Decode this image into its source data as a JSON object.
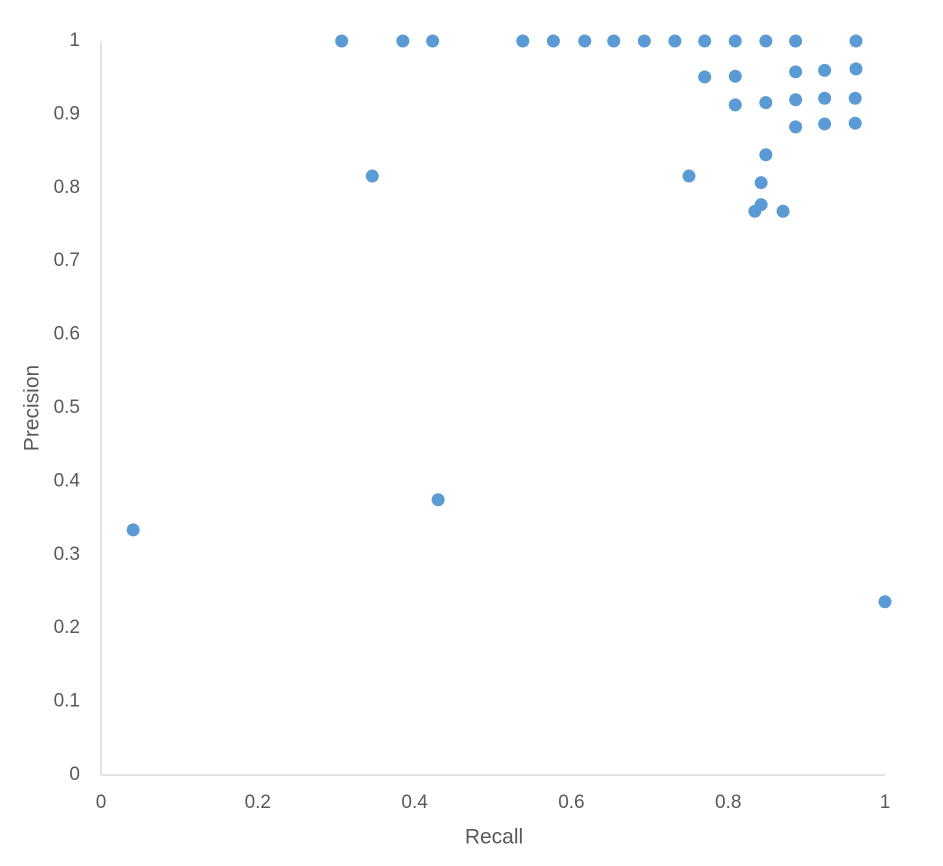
{
  "chart_data": {
    "type": "scatter",
    "x_label": "Recall",
    "y_label": "Precision",
    "x": [
      0.307,
      0.385,
      0.423,
      0.538,
      0.577,
      0.617,
      0.654,
      0.693,
      0.732,
      0.77,
      0.809,
      0.848,
      0.886,
      0.963,
      0.77,
      0.809,
      0.886,
      0.923,
      0.963,
      0.809,
      0.848,
      0.886,
      0.923,
      0.962,
      0.886,
      0.923,
      0.962,
      0.848,
      0.75,
      0.346,
      0.842,
      0.842,
      0.834,
      0.87,
      0.041,
      0.43,
      1.0
    ],
    "values": [
      1,
      1,
      1,
      1,
      1,
      1,
      1,
      1,
      1,
      1,
      1,
      1,
      1,
      1,
      0.951,
      0.952,
      0.958,
      0.96,
      0.962,
      0.913,
      0.916,
      0.92,
      0.922,
      0.922,
      0.883,
      0.887,
      0.888,
      0.845,
      0.816,
      0.816,
      0.807,
      0.777,
      0.768,
      0.768,
      0.334,
      0.375,
      0.236
    ],
    "color": "#5b9bd5",
    "xlim": [
      0,
      1
    ],
    "xticks": [
      0,
      0.2,
      0.4,
      0.6,
      0.8,
      1
    ],
    "ylim": [
      0,
      1
    ],
    "yticks": [
      0,
      0.1,
      0.2,
      0.3,
      0.4,
      0.5,
      0.6,
      0.7,
      0.8,
      0.9,
      1
    ],
    "grid": false
  }
}
